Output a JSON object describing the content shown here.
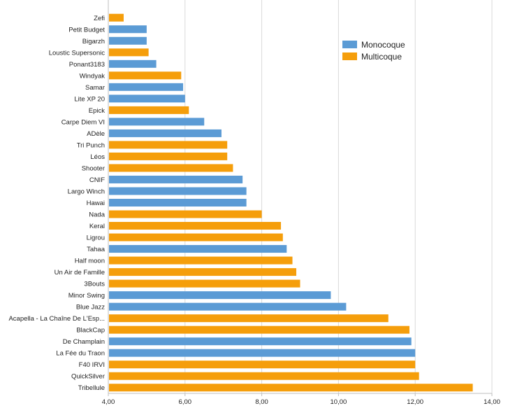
{
  "chart_data": {
    "type": "bar",
    "orientation": "horizontal",
    "title": "",
    "xlabel": "",
    "ylabel": "",
    "xlim": [
      4,
      14
    ],
    "x_ticks": [
      "4,00",
      "6,00",
      "8,00",
      "10,00",
      "12,00",
      "14,00"
    ],
    "grid": "vertical",
    "legend_position": "top-right",
    "colors": {
      "Monocoque": "#5b9bd5",
      "Multicoque": "#f59e0b",
      "grid": "#d9d9d9",
      "axis": "#bfbfbf"
    },
    "legend": [
      {
        "name": "Monocoque"
      },
      {
        "name": "Multicoque"
      }
    ],
    "categories": [
      "Zefi",
      "Petit Budget",
      "Bigarzh",
      "Loustic Supersonic",
      "Ponant3183",
      "Windyak",
      "Samar",
      "Lite XP 20",
      "Epick",
      "Carpe Diem VI",
      "ADèle",
      "Tri Punch",
      "Léos",
      "Shooter",
      "CNIF",
      "Largo Winch",
      "Hawai",
      "Nada",
      "Keral",
      "Ligrou",
      "Tahaa",
      "Half moon",
      "Un Air de Famille",
      "3Bouts",
      "Minor Swing",
      "Blue Jazz",
      "Acapella - La Chaîne De L'Esp...",
      "BlackCap",
      "De Champlain",
      "La Fée du Traon",
      "F40 IRVI",
      "QuickSilver",
      "Tribellule"
    ],
    "values": [
      4.4,
      5.0,
      5.0,
      5.05,
      5.25,
      5.9,
      5.95,
      6.0,
      6.1,
      6.5,
      6.95,
      7.1,
      7.1,
      7.25,
      7.5,
      7.6,
      7.6,
      8.0,
      8.5,
      8.55,
      8.65,
      8.8,
      8.9,
      9.0,
      9.8,
      10.2,
      11.3,
      11.85,
      11.9,
      12.0,
      12.0,
      12.1,
      13.5
    ],
    "series_membership": [
      "Multicoque",
      "Monocoque",
      "Monocoque",
      "Multicoque",
      "Monocoque",
      "Multicoque",
      "Monocoque",
      "Monocoque",
      "Multicoque",
      "Monocoque",
      "Monocoque",
      "Multicoque",
      "Multicoque",
      "Multicoque",
      "Monocoque",
      "Monocoque",
      "Monocoque",
      "Multicoque",
      "Multicoque",
      "Multicoque",
      "Monocoque",
      "Multicoque",
      "Multicoque",
      "Multicoque",
      "Monocoque",
      "Monocoque",
      "Multicoque",
      "Multicoque",
      "Monocoque",
      "Monocoque",
      "Multicoque",
      "Multicoque",
      "Multicoque"
    ]
  }
}
